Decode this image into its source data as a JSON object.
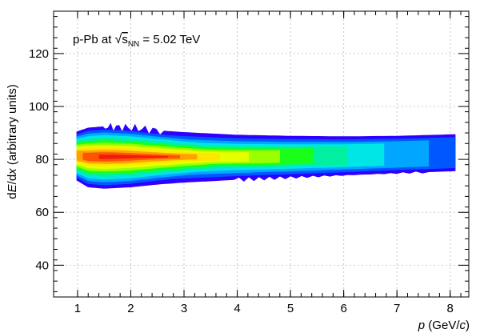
{
  "chart_data": {
    "type": "heatmap",
    "annotation": {
      "prefix": "p-Pb  at ",
      "sqrt_sym": "√",
      "var": "s",
      "sub": "NN",
      "rest": " = 5.02 TeV"
    },
    "xlabel": {
      "italic": "p",
      "rest": " (GeV/",
      "italic2": "c",
      "end": ")"
    },
    "ylabel": {
      "pre": "d",
      "italic1": "E",
      "mid": "/d",
      "italic2": "x",
      "rest": " (arbitrary units)"
    },
    "xlim": [
      0.55,
      8.35
    ],
    "ylim": [
      28,
      136
    ],
    "x_ticks": [
      1,
      2,
      3,
      4,
      5,
      6,
      7,
      8
    ],
    "y_ticks": [
      40,
      60,
      80,
      100,
      120
    ],
    "grid": true,
    "colormap": [
      "#2e00ff",
      "#0057ff",
      "#00a6ff",
      "#00e5e5",
      "#00f0a0",
      "#19ff19",
      "#9aff00",
      "#e4ff00",
      "#ffe600",
      "#ffa200",
      "#ff5500",
      "#ee1c0c"
    ],
    "band": [
      {
        "x": 0.98,
        "center": 81.5,
        "width": 9.0
      },
      {
        "x": 1.2,
        "center": 81.0,
        "width": 11.0
      },
      {
        "x": 1.5,
        "center": 81.0,
        "width": 11.5
      },
      {
        "x": 2.0,
        "center": 81.0,
        "width": 11.0
      },
      {
        "x": 2.5,
        "center": 81.0,
        "width": 10.0
      },
      {
        "x": 3.0,
        "center": 81.0,
        "width": 9.3
      },
      {
        "x": 4.0,
        "center": 81.0,
        "width": 8.3
      },
      {
        "x": 5.0,
        "center": 81.2,
        "width": 7.7
      },
      {
        "x": 6.0,
        "center": 81.5,
        "width": 7.2
      },
      {
        "x": 7.0,
        "center": 82.0,
        "width": 6.9
      },
      {
        "x": 8.1,
        "center": 82.7,
        "width": 6.8
      }
    ],
    "density_peak": {
      "x": 1.5,
      "y": 81
    }
  }
}
